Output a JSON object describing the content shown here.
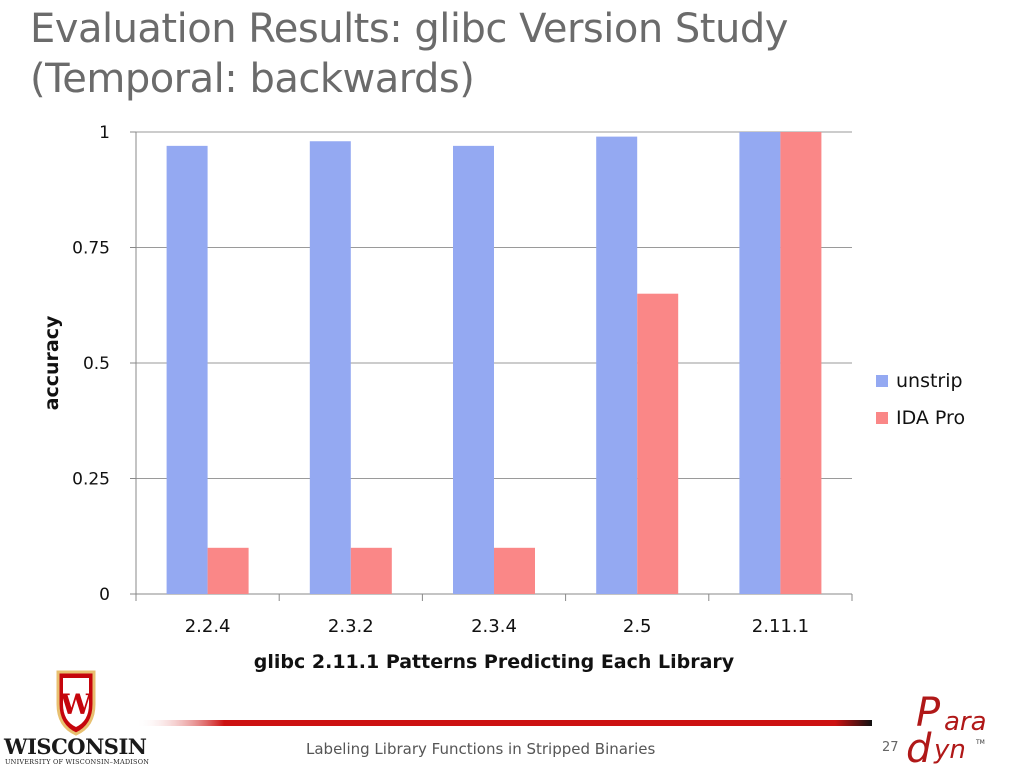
{
  "slide": {
    "title_line1": "Evaluation Results: glibc Version Study",
    "title_line2": "(Temporal: backwards)",
    "footer": "Labeling Library Functions in Stripped Binaries",
    "page_number": "27",
    "logo_left_name": "WISCONSIN",
    "logo_left_sub": "UNIVERSITY OF WISCONSIN–MADISON",
    "logo_right": "Paradyn",
    "colors": {
      "title": "#6b6b6b",
      "rule": "#cc1111"
    }
  },
  "chart_data": {
    "type": "bar",
    "categories": [
      "2.2.4",
      "2.3.2",
      "2.3.4",
      "2.5",
      "2.11.1"
    ],
    "series": [
      {
        "name": "unstrip",
        "color": "#94a9f2",
        "values": [
          0.97,
          0.98,
          0.97,
          0.99,
          1.0
        ]
      },
      {
        "name": "IDA Pro",
        "color": "#fa8787",
        "values": [
          0.1,
          0.1,
          0.1,
          0.65,
          1.0
        ]
      }
    ],
    "title": "",
    "xlabel": "glibc 2.11.1 Patterns Predicting Each Library",
    "ylabel": "accuracy",
    "ylim": [
      0,
      1
    ],
    "yticks": [
      {
        "value": 0,
        "label": "0"
      },
      {
        "value": 0.25,
        "label": "0.25"
      },
      {
        "value": 0.5,
        "label": "0.5"
      },
      {
        "value": 0.75,
        "label": "0.75"
      },
      {
        "value": 1,
        "label": "1"
      }
    ],
    "grid": true,
    "legend_position": "right"
  }
}
